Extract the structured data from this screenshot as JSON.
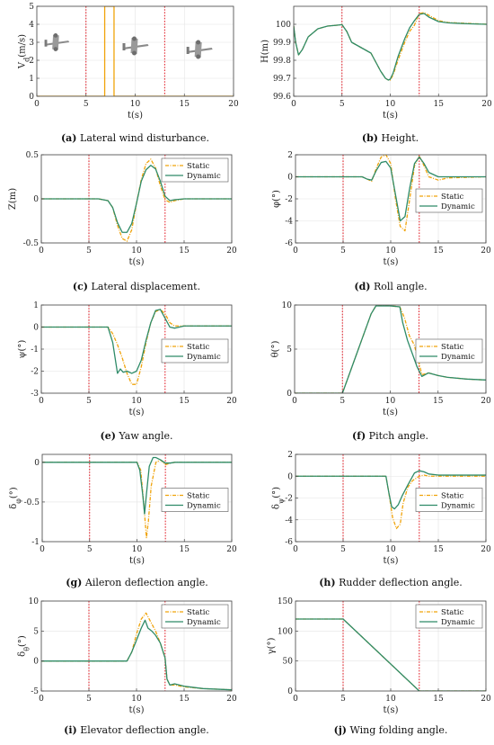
{
  "colors": {
    "static": "#f0a30a",
    "dynamic": "#2e8b68",
    "event": "#e0141e",
    "axis": "#444444",
    "grid": "#e3e3e3"
  },
  "legend": {
    "static": "Static",
    "dynamic": "Dynamic"
  },
  "chart_data": [
    {
      "id": "a",
      "type": "line",
      "caption_letter": "a",
      "caption": " Lateral wind disturbance.",
      "xlabel": "t(s)",
      "ylabel": "V_d(m/s)",
      "xlim": [
        0,
        20
      ],
      "ylim": [
        0,
        5
      ],
      "xticks": [
        0,
        5,
        10,
        15,
        20
      ],
      "yticks": [
        0,
        1,
        2,
        3,
        4,
        5
      ],
      "grid": true,
      "legend": "none",
      "events": [
        5,
        13
      ],
      "decor": "aircraft-silhouettes",
      "series": [
        {
          "key": "single",
          "style": "solid",
          "x": [
            0,
            6.9,
            6.9,
            7.85,
            7.85,
            20
          ],
          "y": [
            0,
            0,
            5,
            5,
            0,
            0
          ]
        }
      ]
    },
    {
      "id": "b",
      "type": "line",
      "caption_letter": "b",
      "caption": " Height.",
      "xlabel": "t(s)",
      "ylabel": "H(m)",
      "xlim": [
        0,
        20
      ],
      "ylim": [
        99.6,
        100.1
      ],
      "xticks": [
        0,
        5,
        10,
        15,
        20
      ],
      "yticks": [
        99.6,
        99.7,
        99.8,
        99.9,
        100
      ],
      "grid": true,
      "legend": "none",
      "events": [
        5,
        13
      ],
      "series": [
        {
          "key": "static",
          "style": "dashdot",
          "x": [
            0,
            0.2,
            0.5,
            0.9,
            1.5,
            2.5,
            3.5,
            4.5,
            5,
            5.5,
            6,
            7,
            8,
            8.5,
            9,
            9.5,
            9.8,
            10,
            10.3,
            10.8,
            11.5,
            12,
            12.5,
            13,
            13.5,
            14,
            15,
            16,
            18,
            20
          ],
          "y": [
            99.99,
            99.9,
            99.83,
            99.86,
            99.93,
            99.975,
            99.99,
            99.995,
            99.998,
            99.96,
            99.9,
            99.87,
            99.84,
            99.79,
            99.74,
            99.7,
            99.69,
            99.69,
            99.72,
            99.8,
            99.9,
            99.96,
            99.995,
            100.06,
            100.065,
            100.05,
            100.02,
            100.01,
            100.005,
            100.0
          ]
        },
        {
          "key": "dynamic",
          "style": "solid",
          "x": [
            0,
            0.2,
            0.5,
            0.9,
            1.5,
            2.5,
            3.5,
            4.5,
            5,
            5.5,
            6,
            7,
            8,
            8.5,
            9,
            9.5,
            9.8,
            10,
            10.3,
            10.8,
            11.5,
            12,
            12.5,
            13,
            13.5,
            14,
            15,
            16,
            18,
            20
          ],
          "y": [
            99.99,
            99.9,
            99.83,
            99.86,
            99.93,
            99.975,
            99.99,
            99.995,
            99.998,
            99.96,
            99.9,
            99.87,
            99.84,
            99.79,
            99.74,
            99.7,
            99.69,
            99.695,
            99.73,
            99.82,
            99.92,
            99.98,
            100.02,
            100.055,
            100.06,
            100.04,
            100.015,
            100.008,
            100.003,
            100.0
          ]
        }
      ]
    },
    {
      "id": "c",
      "type": "line",
      "caption_letter": "c",
      "caption": " Lateral displacement.",
      "xlabel": "t(s)",
      "ylabel": "Z(m)",
      "xlim": [
        0,
        20
      ],
      "ylim": [
        -0.5,
        0.5
      ],
      "xticks": [
        0,
        5,
        10,
        15,
        20
      ],
      "yticks": [
        -0.5,
        0,
        0.5
      ],
      "grid": true,
      "legend": "top-right",
      "events": [
        5,
        13
      ],
      "series": [
        {
          "key": "static",
          "style": "dashdot",
          "x": [
            0,
            6,
            7,
            7.5,
            8,
            8.5,
            9,
            9.5,
            10,
            10.5,
            11,
            11.5,
            12,
            12.5,
            13,
            13.5,
            14,
            15,
            16,
            20
          ],
          "y": [
            0,
            0,
            -0.02,
            -0.1,
            -0.3,
            -0.45,
            -0.48,
            -0.35,
            -0.05,
            0.22,
            0.4,
            0.45,
            0.35,
            0.15,
            -0.01,
            -0.04,
            -0.02,
            0,
            0,
            0
          ]
        },
        {
          "key": "dynamic",
          "style": "solid",
          "x": [
            0,
            6,
            7,
            7.5,
            8,
            8.5,
            9,
            9.5,
            10,
            10.5,
            11,
            11.5,
            12,
            12.5,
            13,
            13.5,
            14,
            15,
            16,
            20
          ],
          "y": [
            0,
            0,
            -0.02,
            -0.1,
            -0.27,
            -0.38,
            -0.38,
            -0.28,
            -0.05,
            0.2,
            0.33,
            0.38,
            0.34,
            0.2,
            0.03,
            -0.02,
            -0.01,
            0,
            0,
            0
          ]
        }
      ]
    },
    {
      "id": "d",
      "type": "line",
      "caption_letter": "d",
      "caption": " Roll angle.",
      "xlabel": "t(s)",
      "ylabel": "φ(°)",
      "xlim": [
        0,
        20
      ],
      "ylim": [
        -6,
        2
      ],
      "xticks": [
        0,
        5,
        10,
        15,
        20
      ],
      "yticks": [
        -6,
        -4,
        -2,
        0,
        2
      ],
      "grid": true,
      "legend": "right",
      "events": [
        5,
        13
      ],
      "series": [
        {
          "key": "static",
          "style": "dashdot",
          "x": [
            0,
            7,
            7.5,
            8,
            8.5,
            9,
            9.5,
            10,
            10.5,
            11,
            11.5,
            12,
            12.5,
            13,
            13.5,
            14,
            15,
            16,
            20
          ],
          "y": [
            0,
            0,
            -0.2,
            -0.4,
            0.8,
            1.8,
            2.0,
            1.2,
            -2.0,
            -4.5,
            -4.9,
            -2.0,
            1.0,
            1.9,
            1.0,
            0,
            -0.3,
            -0.1,
            0
          ]
        },
        {
          "key": "dynamic",
          "style": "solid",
          "x": [
            0,
            7,
            7.5,
            8,
            8.5,
            9,
            9.5,
            10,
            10.5,
            11,
            11.5,
            12,
            12.5,
            13,
            13.5,
            14,
            15,
            16,
            20
          ],
          "y": [
            0,
            0,
            -0.2,
            -0.3,
            0.6,
            1.3,
            1.4,
            0.8,
            -1.6,
            -4.0,
            -3.6,
            -1.0,
            1.2,
            1.8,
            1.2,
            0.4,
            0,
            0,
            0
          ]
        }
      ]
    },
    {
      "id": "e",
      "type": "line",
      "caption_letter": "e",
      "caption": " Yaw angle.",
      "xlabel": "t(s)",
      "ylabel": "ψ(°)",
      "xlim": [
        0,
        20
      ],
      "ylim": [
        -3,
        1
      ],
      "xticks": [
        0,
        5,
        10,
        15,
        20
      ],
      "yticks": [
        -3,
        -2,
        -1,
        0,
        1
      ],
      "grid": true,
      "legend": "right",
      "events": [
        5,
        13
      ],
      "series": [
        {
          "key": "static",
          "style": "dashdot",
          "x": [
            0,
            7,
            7.5,
            8,
            8.5,
            9,
            9.5,
            10,
            10.5,
            11,
            11.5,
            12,
            12.5,
            13,
            13.5,
            14,
            15,
            16,
            20
          ],
          "y": [
            0,
            0,
            -0.3,
            -0.8,
            -1.4,
            -2.1,
            -2.6,
            -2.6,
            -1.8,
            -0.7,
            0.2,
            0.7,
            0.8,
            0.6,
            0.2,
            0.05,
            0.05,
            0.05,
            0.05
          ]
        },
        {
          "key": "dynamic",
          "style": "solid",
          "x": [
            0,
            7,
            7.5,
            8,
            8.3,
            8.6,
            9,
            9.5,
            10,
            10.5,
            11,
            11.5,
            12,
            12.5,
            13,
            13.5,
            14,
            15,
            16,
            20
          ],
          "y": [
            0,
            0,
            -0.7,
            -2.1,
            -1.9,
            -2.05,
            -2.0,
            -2.1,
            -2.0,
            -1.5,
            -0.6,
            0.2,
            0.75,
            0.8,
            0.4,
            0.0,
            -0.05,
            0.05,
            0.05,
            0.05
          ]
        }
      ]
    },
    {
      "id": "f",
      "type": "line",
      "caption_letter": "f",
      "caption": " Pitch angle.",
      "xlabel": "t(s)",
      "ylabel": "θ(°)",
      "xlim": [
        0,
        20
      ],
      "ylim": [
        0,
        10
      ],
      "xticks": [
        0,
        5,
        10,
        15,
        20
      ],
      "yticks": [
        0,
        5,
        10
      ],
      "grid": true,
      "legend": "right",
      "events": [
        5,
        13
      ],
      "series": [
        {
          "key": "static",
          "style": "dashdot",
          "x": [
            0,
            5,
            6,
            7,
            8,
            8.5,
            9,
            10,
            11,
            11.5,
            12,
            12.5,
            13,
            13.3,
            14,
            15,
            16,
            18,
            20
          ],
          "y": [
            0,
            0,
            3,
            6,
            9,
            9.9,
            10,
            9.9,
            9.8,
            8.5,
            6.5,
            5.5,
            3.5,
            2.1,
            2.3,
            2.0,
            1.8,
            1.6,
            1.5
          ]
        },
        {
          "key": "dynamic",
          "style": "solid",
          "x": [
            0,
            5,
            6,
            7,
            8,
            8.5,
            9,
            10,
            11,
            11.3,
            11.8,
            12.3,
            12.8,
            13.3,
            14,
            15,
            16,
            18,
            20
          ],
          "y": [
            0,
            0,
            3,
            6,
            9,
            9.9,
            9.9,
            9.9,
            9.8,
            8.0,
            6.0,
            4.5,
            3.0,
            1.9,
            2.3,
            2.0,
            1.8,
            1.6,
            1.5
          ]
        }
      ]
    },
    {
      "id": "g",
      "type": "line",
      "caption_letter": "g",
      "caption": " Aileron deflection angle.",
      "xlabel": "t(s)",
      "ylabel": "δ_φ(°)",
      "xlim": [
        0,
        20
      ],
      "ylim": [
        -1,
        0.1
      ],
      "xticks": [
        0,
        5,
        10,
        15,
        20
      ],
      "yticks": [
        -1,
        -0.5,
        0
      ],
      "grid": true,
      "legend": "right",
      "events": [
        5,
        13
      ],
      "series": [
        {
          "key": "static",
          "style": "dashdot",
          "x": [
            0,
            10,
            10.4,
            10.7,
            11,
            11.2,
            11.5,
            12,
            12.5,
            13,
            13.5,
            14,
            15,
            20
          ],
          "y": [
            0,
            0,
            -0.1,
            -0.5,
            -0.95,
            -0.75,
            -0.3,
            0.0,
            0.03,
            -0.03,
            -0.01,
            0,
            0,
            0
          ]
        },
        {
          "key": "dynamic",
          "style": "solid",
          "x": [
            0,
            10,
            10.3,
            10.6,
            10.8,
            11,
            11.3,
            11.7,
            12,
            12.5,
            13,
            13.5,
            14,
            15,
            20
          ],
          "y": [
            0,
            0,
            -0.1,
            -0.4,
            -0.65,
            -0.4,
            -0.05,
            0.06,
            0.06,
            0.03,
            -0.01,
            -0.01,
            0,
            0,
            0
          ]
        }
      ]
    },
    {
      "id": "h",
      "type": "line",
      "caption_letter": "h",
      "caption": " Rudder deflection angle.",
      "xlabel": "t(s)",
      "ylabel": "δ_ψ(°)",
      "xlim": [
        0,
        20
      ],
      "ylim": [
        -6,
        2
      ],
      "xticks": [
        0,
        5,
        10,
        15,
        20
      ],
      "yticks": [
        -6,
        -4,
        -2,
        0,
        2
      ],
      "grid": true,
      "legend": "right",
      "events": [
        5,
        13
      ],
      "series": [
        {
          "key": "static",
          "style": "dashdot",
          "x": [
            0,
            9.5,
            9.8,
            10.2,
            10.6,
            11,
            11.3,
            11.8,
            12.3,
            13,
            13.5,
            14,
            15,
            16,
            20
          ],
          "y": [
            0,
            0,
            -1.5,
            -3.8,
            -4.8,
            -4.4,
            -2.5,
            -1.0,
            -0.4,
            0,
            0.1,
            0,
            0,
            0,
            0
          ]
        },
        {
          "key": "dynamic",
          "style": "solid",
          "x": [
            0,
            9.5,
            9.8,
            10.1,
            10.4,
            10.8,
            11.2,
            11.8,
            12.5,
            13,
            13.5,
            14,
            15,
            16,
            20
          ],
          "y": [
            0,
            0,
            -1.5,
            -2.8,
            -3.0,
            -2.6,
            -1.8,
            -0.8,
            0.3,
            0.5,
            0.4,
            0.2,
            0.1,
            0.1,
            0.1
          ]
        }
      ]
    },
    {
      "id": "i",
      "type": "line",
      "caption_letter": "i",
      "caption": " Elevator deflection angle.",
      "xlabel": "t(s)",
      "ylabel": "δ_θ(°)",
      "xlim": [
        0,
        20
      ],
      "ylim": [
        -5,
        10
      ],
      "xticks": [
        0,
        5,
        10,
        15,
        20
      ],
      "yticks": [
        -5,
        0,
        5,
        10
      ],
      "grid": true,
      "legend": "top-right",
      "events": [
        5,
        13
      ],
      "series": [
        {
          "key": "static",
          "style": "dashdot",
          "x": [
            0,
            9,
            9.5,
            10,
            10.5,
            11,
            11.5,
            12,
            12.5,
            13,
            13.2,
            13.5,
            14,
            15,
            17,
            20
          ],
          "y": [
            0,
            0,
            1.5,
            4.5,
            7.0,
            8.0,
            6.5,
            5.0,
            3.0,
            0.5,
            -3.0,
            -4.0,
            -4.0,
            -4.3,
            -4.6,
            -4.8
          ]
        },
        {
          "key": "dynamic",
          "style": "solid",
          "x": [
            0,
            9,
            9.5,
            10,
            10.5,
            10.9,
            11.2,
            11.6,
            12,
            12.5,
            13,
            13.2,
            13.5,
            14,
            15,
            17,
            20
          ],
          "y": [
            0,
            0,
            1.5,
            3.5,
            5.5,
            6.8,
            5.5,
            5.0,
            4.3,
            3.0,
            0.5,
            -3.0,
            -4.0,
            -3.8,
            -4.2,
            -4.6,
            -4.8
          ]
        }
      ]
    },
    {
      "id": "j",
      "type": "line",
      "caption_letter": "j",
      "caption": " Wing folding angle.",
      "xlabel": "t(s)",
      "ylabel": "γ(°)",
      "xlim": [
        0,
        20
      ],
      "ylim": [
        0,
        150
      ],
      "xticks": [
        0,
        5,
        10,
        15,
        20
      ],
      "yticks": [
        0,
        50,
        100,
        150
      ],
      "grid": true,
      "legend": "top-right",
      "events": [
        5,
        13
      ],
      "series": [
        {
          "key": "static",
          "style": "dashdot",
          "x": [
            0,
            5,
            13,
            20
          ],
          "y": [
            120,
            120,
            0,
            0
          ]
        },
        {
          "key": "dynamic",
          "style": "solid",
          "x": [
            0,
            5,
            13,
            20
          ],
          "y": [
            120,
            120,
            0,
            0
          ]
        }
      ]
    }
  ]
}
